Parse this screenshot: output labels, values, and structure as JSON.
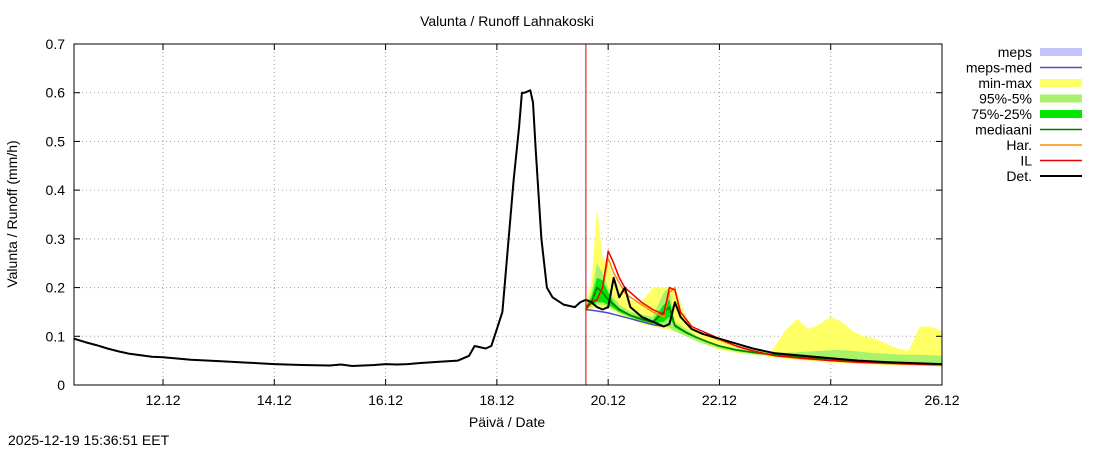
{
  "chart_data": {
    "type": "line",
    "title": "Valunta / Runoff  Lahnakoski",
    "xlabel": "Päivä / Date",
    "ylabel": "Valunta / Runoff (mm/h)",
    "timestamp": "2025-12-19 15:36:51 EET",
    "x_unit": "days since 2025-12-11 00:00",
    "xlim": [
      -0.6,
      15.0
    ],
    "ylim": [
      0,
      0.7
    ],
    "yticks": [
      0,
      0.1,
      0.2,
      0.3,
      0.4,
      0.5,
      0.6,
      0.7
    ],
    "ytick_labels": [
      "0",
      "0.1",
      "0.2",
      "0.3",
      "0.4",
      "0.5",
      "0.6",
      "0.7"
    ],
    "xticks": [
      1,
      3,
      5,
      7,
      9,
      11,
      13,
      15
    ],
    "xtick_labels": [
      "12.12",
      "14.12",
      "16.12",
      "18.12",
      "20.12",
      "22.12",
      "24.12",
      "26.12"
    ],
    "grid": true,
    "forecast_start": 8.6,
    "colors": {
      "meps": "#c4c4fa",
      "meps_med": "#4b4bd2",
      "minmax": "#ffff66",
      "p95_5": "#a8f26c",
      "p75_25": "#00e600",
      "mediaani": "#007a00",
      "har": "#ff8c00",
      "il": "#ee0000",
      "det": "#000000",
      "vline": "#dd0000"
    },
    "legend": {
      "position": "top-right",
      "entries": [
        {
          "key": "meps",
          "label": "meps",
          "style": "band",
          "color": "#c4c4fa"
        },
        {
          "key": "meps_med",
          "label": "meps-med",
          "style": "line",
          "color": "#4b4bd2"
        },
        {
          "key": "minmax",
          "label": "min-max",
          "style": "band",
          "color": "#ffff66"
        },
        {
          "key": "p95_5",
          "label": "95%-5%",
          "style": "band",
          "color": "#a8f26c"
        },
        {
          "key": "p75_25",
          "label": "75%-25%",
          "style": "band",
          "color": "#00e600"
        },
        {
          "key": "mediaani",
          "label": "mediaani",
          "style": "line",
          "color": "#007a00"
        },
        {
          "key": "har",
          "label": "Har.",
          "style": "line",
          "color": "#ff8c00"
        },
        {
          "key": "il",
          "label": "IL",
          "style": "line",
          "color": "#ee0000"
        },
        {
          "key": "det",
          "label": "Det.",
          "style": "line",
          "color": "#000000"
        }
      ]
    },
    "bands": [
      {
        "name": "minmax",
        "x": [
          8.6,
          8.7,
          8.8,
          8.9,
          9.0,
          9.1,
          9.2,
          9.3,
          9.4,
          9.5,
          9.6,
          9.8,
          10.0,
          10.2,
          10.4,
          10.6,
          10.8,
          11.0,
          11.3,
          11.6,
          11.9,
          12.0,
          12.2,
          12.4,
          12.6,
          12.8,
          13.0,
          13.2,
          13.4,
          13.6,
          13.8,
          14.0,
          14.2,
          14.4,
          14.6,
          14.8,
          15.0
        ],
        "lower": [
          0.15,
          0.155,
          0.16,
          0.16,
          0.158,
          0.152,
          0.145,
          0.14,
          0.135,
          0.13,
          0.125,
          0.12,
          0.115,
          0.11,
          0.1,
          0.09,
          0.08,
          0.072,
          0.066,
          0.062,
          0.058,
          0.056,
          0.054,
          0.052,
          0.05,
          0.048,
          0.046,
          0.045,
          0.044,
          0.043,
          0.042,
          0.041,
          0.04,
          0.04,
          0.039,
          0.039,
          0.038
        ],
        "upper": [
          0.17,
          0.21,
          0.365,
          0.26,
          0.25,
          0.22,
          0.2,
          0.19,
          0.175,
          0.17,
          0.17,
          0.2,
          0.2,
          0.2,
          0.14,
          0.11,
          0.1,
          0.09,
          0.08,
          0.07,
          0.065,
          0.08,
          0.115,
          0.135,
          0.115,
          0.125,
          0.14,
          0.13,
          0.11,
          0.1,
          0.095,
          0.085,
          0.075,
          0.07,
          0.12,
          0.12,
          0.11
        ]
      },
      {
        "name": "p95_5",
        "x": [
          8.6,
          8.7,
          8.8,
          8.9,
          9.0,
          9.1,
          9.2,
          9.4,
          9.6,
          9.8,
          10.0,
          10.1,
          10.2,
          10.4,
          10.6,
          10.8,
          11.0,
          11.3,
          11.6,
          11.9,
          12.2,
          12.5,
          12.8,
          13.1,
          13.4,
          13.7,
          14.0,
          14.3,
          14.6,
          15.0
        ],
        "lower": [
          0.155,
          0.16,
          0.165,
          0.165,
          0.16,
          0.155,
          0.148,
          0.138,
          0.13,
          0.124,
          0.12,
          0.118,
          0.11,
          0.1,
          0.09,
          0.082,
          0.075,
          0.068,
          0.063,
          0.06,
          0.057,
          0.054,
          0.052,
          0.05,
          0.048,
          0.046,
          0.044,
          0.042,
          0.041,
          0.04
        ],
        "upper": [
          0.165,
          0.19,
          0.25,
          0.23,
          0.2,
          0.18,
          0.165,
          0.15,
          0.145,
          0.14,
          0.19,
          0.2,
          0.13,
          0.115,
          0.1,
          0.09,
          0.082,
          0.075,
          0.072,
          0.068,
          0.066,
          0.068,
          0.07,
          0.072,
          0.07,
          0.066,
          0.064,
          0.062,
          0.062,
          0.06
        ]
      },
      {
        "name": "p75_25",
        "x": [
          8.6,
          8.7,
          8.8,
          8.9,
          9.0,
          9.1,
          9.2,
          9.4,
          9.6,
          9.8,
          10.0,
          10.1,
          10.2,
          10.4,
          10.6,
          10.8,
          11.0,
          11.3,
          11.6,
          11.9,
          12.2,
          12.5,
          12.8,
          13.1,
          13.4,
          13.7,
          14.0,
          14.3,
          14.6,
          15.0
        ],
        "lower": [
          0.157,
          0.165,
          0.17,
          0.17,
          0.165,
          0.158,
          0.15,
          0.14,
          0.132,
          0.126,
          0.13,
          0.14,
          0.118,
          0.105,
          0.095,
          0.086,
          0.078,
          0.07,
          0.065,
          0.062,
          0.059,
          0.056,
          0.053,
          0.051,
          0.049,
          0.047,
          0.045,
          0.043,
          0.042,
          0.041
        ],
        "upper": [
          0.162,
          0.18,
          0.22,
          0.215,
          0.19,
          0.17,
          0.158,
          0.145,
          0.138,
          0.132,
          0.165,
          0.175,
          0.125,
          0.11,
          0.098,
          0.089,
          0.08,
          0.072,
          0.067,
          0.064,
          0.061,
          0.058,
          0.055,
          0.053,
          0.051,
          0.049,
          0.047,
          0.045,
          0.044,
          0.043
        ]
      }
    ],
    "series": [
      {
        "name": "det",
        "width": 2,
        "x": [
          -0.6,
          -0.4,
          -0.2,
          0.0,
          0.2,
          0.4,
          0.6,
          0.8,
          1.0,
          1.2,
          1.5,
          2.0,
          2.5,
          3.0,
          3.5,
          4.0,
          4.2,
          4.4,
          4.6,
          4.8,
          5.0,
          5.2,
          5.4,
          5.6,
          6.0,
          6.3,
          6.5,
          6.6,
          6.8,
          6.9,
          7.0,
          7.1,
          7.3,
          7.4,
          7.45,
          7.5,
          7.6,
          7.65,
          7.7,
          7.8,
          7.9,
          8.0,
          8.2,
          8.4,
          8.5,
          8.6,
          8.7,
          8.8,
          8.9,
          9.0,
          9.1,
          9.2,
          9.3,
          9.4,
          9.5,
          9.6,
          9.8,
          10.0,
          10.1,
          10.2,
          10.3,
          10.5,
          10.7,
          11.0,
          11.3,
          11.6,
          12.0,
          12.5,
          13.0,
          13.5,
          14.0,
          14.5,
          15.0
        ],
        "values": [
          0.095,
          0.088,
          0.082,
          0.075,
          0.069,
          0.064,
          0.061,
          0.058,
          0.057,
          0.055,
          0.052,
          0.049,
          0.046,
          0.043,
          0.041,
          0.04,
          0.042,
          0.039,
          0.04,
          0.041,
          0.043,
          0.042,
          0.043,
          0.045,
          0.048,
          0.05,
          0.06,
          0.08,
          0.075,
          0.08,
          0.115,
          0.15,
          0.42,
          0.53,
          0.6,
          0.6,
          0.605,
          0.58,
          0.48,
          0.3,
          0.2,
          0.18,
          0.165,
          0.16,
          0.17,
          0.175,
          0.17,
          0.16,
          0.155,
          0.16,
          0.22,
          0.18,
          0.2,
          0.16,
          0.15,
          0.14,
          0.13,
          0.12,
          0.125,
          0.17,
          0.14,
          0.115,
          0.105,
          0.095,
          0.085,
          0.075,
          0.065,
          0.06,
          0.055,
          0.05,
          0.047,
          0.045,
          0.043
        ]
      },
      {
        "name": "il",
        "width": 1.5,
        "x": [
          8.6,
          8.7,
          8.8,
          8.9,
          9.0,
          9.1,
          9.2,
          9.3,
          9.4,
          9.6,
          9.8,
          10.0,
          10.1,
          10.2,
          10.3,
          10.5,
          10.7,
          11.0,
          11.3,
          11.6,
          12.0,
          12.5,
          13.0,
          13.5,
          14.0,
          14.5,
          15.0
        ],
        "values": [
          0.155,
          0.17,
          0.175,
          0.2,
          0.275,
          0.25,
          0.22,
          0.2,
          0.19,
          0.17,
          0.155,
          0.145,
          0.2,
          0.195,
          0.15,
          0.12,
          0.11,
          0.095,
          0.08,
          0.07,
          0.06,
          0.055,
          0.05,
          0.047,
          0.045,
          0.043,
          0.042
        ]
      },
      {
        "name": "har",
        "width": 1.5,
        "x": [
          8.6,
          8.7,
          8.8,
          8.9,
          9.0,
          9.1,
          9.2,
          9.3,
          9.4,
          9.6,
          9.8,
          10.0,
          10.1,
          10.2,
          10.3,
          10.5,
          10.7,
          11.0,
          11.3,
          11.6,
          12.0,
          12.5,
          13.0,
          13.5,
          14.0,
          14.5,
          15.0
        ],
        "values": [
          0.155,
          0.17,
          0.175,
          0.2,
          0.26,
          0.23,
          0.21,
          0.19,
          0.18,
          0.165,
          0.15,
          0.14,
          0.19,
          0.2,
          0.14,
          0.115,
          0.105,
          0.092,
          0.08,
          0.07,
          0.06,
          0.054,
          0.05,
          0.046,
          0.044,
          0.042,
          0.04
        ]
      },
      {
        "name": "mediaani",
        "width": 1.5,
        "x": [
          8.6,
          8.7,
          8.8,
          8.9,
          9.0,
          9.1,
          9.2,
          9.4,
          9.6,
          9.8,
          10.0,
          10.1,
          10.2,
          10.4,
          10.6,
          10.8,
          11.0,
          11.3,
          11.6,
          11.9,
          12.2,
          12.5,
          12.8,
          13.1,
          13.4,
          13.7,
          14.0,
          14.3,
          14.6,
          15.0
        ],
        "values": [
          0.16,
          0.17,
          0.2,
          0.19,
          0.175,
          0.165,
          0.155,
          0.143,
          0.135,
          0.129,
          0.15,
          0.16,
          0.122,
          0.108,
          0.097,
          0.088,
          0.08,
          0.072,
          0.067,
          0.063,
          0.06,
          0.057,
          0.054,
          0.052,
          0.05,
          0.048,
          0.046,
          0.044,
          0.043,
          0.042
        ]
      },
      {
        "name": "meps_med",
        "width": 1.5,
        "x": [
          8.6,
          8.8,
          9.0,
          9.2,
          9.4,
          9.6,
          9.8,
          10.0
        ],
        "values": [
          0.155,
          0.152,
          0.148,
          0.142,
          0.136,
          0.13,
          0.124,
          0.12
        ]
      }
    ]
  }
}
